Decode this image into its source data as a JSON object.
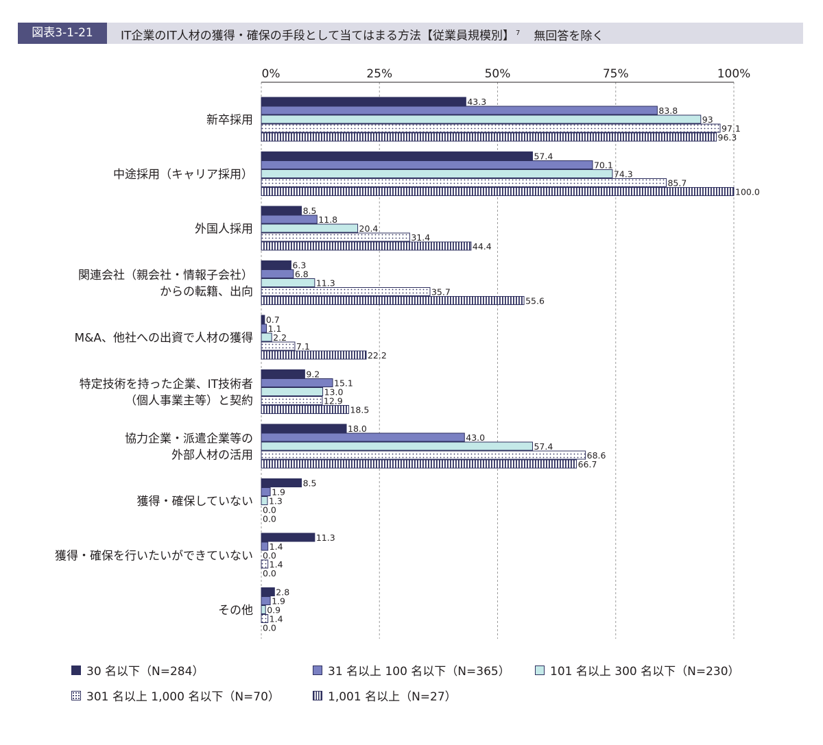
{
  "header": {
    "badge": "図表3-1-21",
    "title": "IT企業のIT人材の獲得・確保の手段として当てはまる方法【従業員規模別】",
    "footnote": "7",
    "note": "無回答を除く"
  },
  "chart_data": {
    "type": "bar",
    "orientation": "horizontal",
    "xlim": [
      0,
      100
    ],
    "ticks": [
      "0%",
      "25%",
      "50%",
      "75%",
      "100%"
    ],
    "grid": true,
    "legend_position": "bottom",
    "categories": [
      [
        "新卒採用"
      ],
      [
        "中途採用（キャリア採用）"
      ],
      [
        "外国人採用"
      ],
      [
        "関連会社（親会社・情報子会社）",
        "からの転籍、出向"
      ],
      [
        "M&A、他社への出資で人材の獲得"
      ],
      [
        "特定技術を持った企業、IT技術者",
        "（個人事業主等）と契約"
      ],
      [
        "協力企業・派遣企業等の",
        "外部人材の活用"
      ],
      [
        "獲得・確保していない"
      ],
      [
        "獲得・確保を行いたいができていない"
      ],
      [
        "その他"
      ]
    ],
    "series": [
      {
        "name": "30 名以下（N=284）",
        "color": "#2e2f5e",
        "pattern": "solid",
        "values": [
          43.3,
          57.4,
          8.5,
          6.3,
          0.7,
          9.2,
          18.0,
          8.5,
          11.3,
          2.8
        ],
        "labels": [
          "43.3",
          "57.4",
          "8.5",
          "6.3",
          "0.7",
          "9.2",
          "18.0",
          "8.5",
          "11.3",
          "2.8"
        ]
      },
      {
        "name": "31 名以上 100 名以下（N=365）",
        "color": "#7a80c2",
        "pattern": "solid",
        "values": [
          83.8,
          70.1,
          11.8,
          6.8,
          1.1,
          15.1,
          43.0,
          1.9,
          1.4,
          1.9
        ],
        "labels": [
          "83.8",
          "70.1",
          "11.8",
          "6.8",
          "1.1",
          "15.1",
          "43.0",
          "1.9",
          "1.4",
          "1.9"
        ]
      },
      {
        "name": "101 名以上 300 名以下（N=230）",
        "color": "#c4e9e8",
        "pattern": "solid",
        "values": [
          93,
          74.3,
          20.4,
          11.3,
          2.2,
          13.0,
          57.4,
          1.3,
          0.0,
          0.9
        ],
        "labels": [
          "93",
          "74.3",
          "20.4",
          "11.3",
          "2.2",
          "13.0",
          "57.4",
          "1.3",
          "0.0",
          "0.9"
        ]
      },
      {
        "name": "301 名以上 1,000 名以下（N=70）",
        "color": "#2e2f5e",
        "pattern": "dots",
        "values": [
          97.1,
          85.7,
          31.4,
          35.7,
          7.1,
          12.9,
          68.6,
          0.0,
          1.4,
          1.4
        ],
        "labels": [
          "97.1",
          "85.7",
          "31.4",
          "35.7",
          "7.1",
          "12.9",
          "68.6",
          "0.0",
          "1.4",
          "1.4"
        ]
      },
      {
        "name": "1,001 名以上（N=27）",
        "color": "#2e2f5e",
        "pattern": "vlines",
        "values": [
          96.3,
          100.0,
          44.4,
          55.6,
          22.2,
          18.5,
          66.7,
          0.0,
          0.0,
          0.0
        ],
        "labels": [
          "96.3",
          "100.0",
          "44.4",
          "55.6",
          "22.2",
          "18.5",
          "66.7",
          "0.0",
          "0.0",
          "0.0"
        ]
      }
    ]
  }
}
